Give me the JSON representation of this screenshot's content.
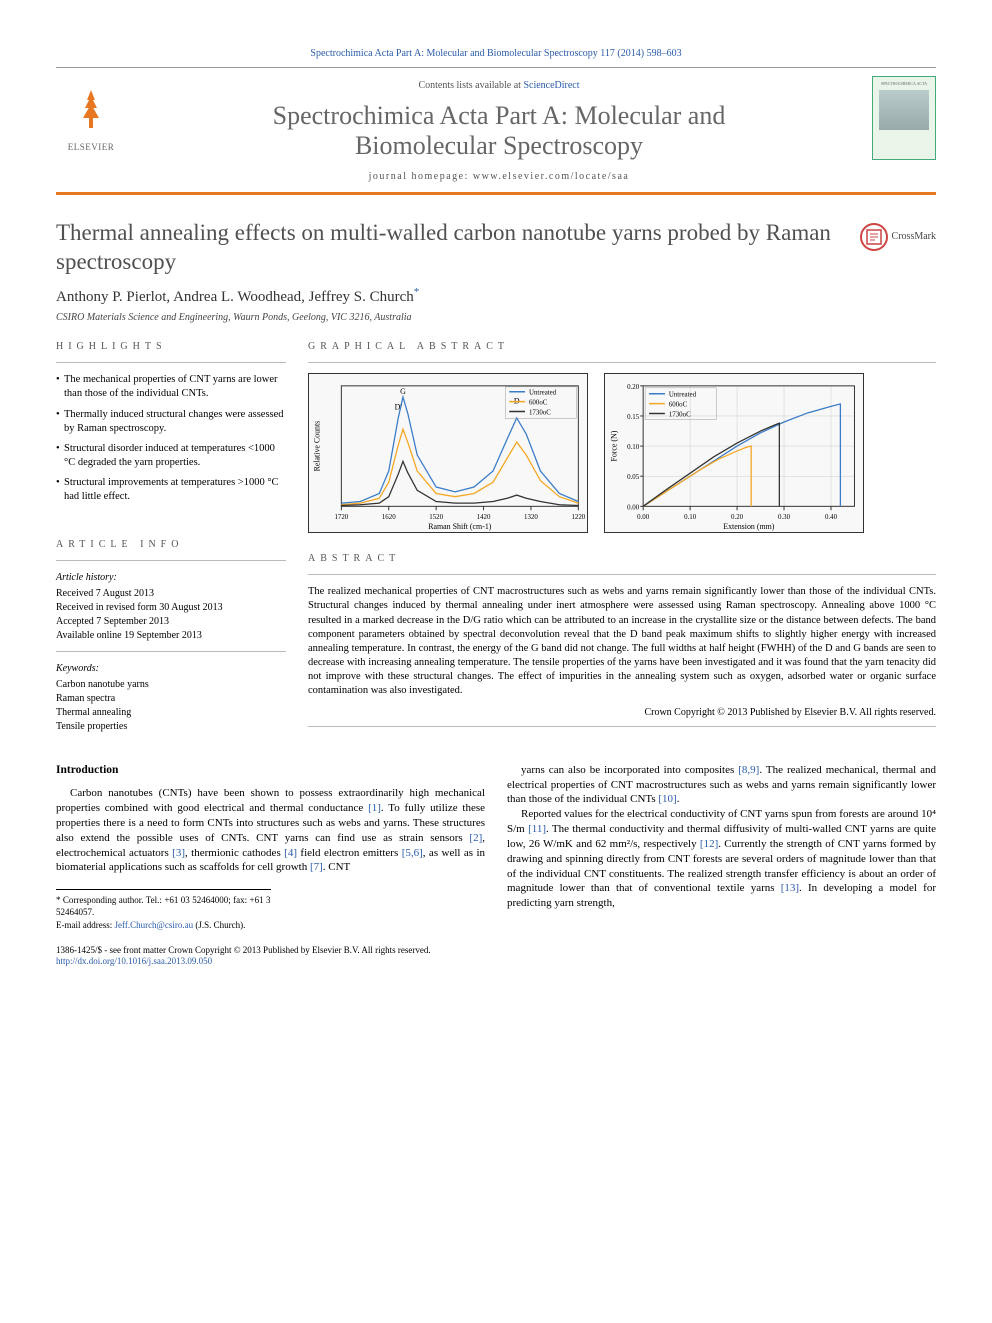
{
  "header": {
    "citation": "Spectrochimica Acta Part A: Molecular and Biomolecular Spectroscopy 117 (2014) 598–603",
    "contents_prefix": "Contents lists available at ",
    "contents_link": "ScienceDirect",
    "journal_name_line1": "Spectrochimica Acta Part A: Molecular and",
    "journal_name_line2": "Biomolecular Spectroscopy",
    "homepage": "journal homepage: www.elsevier.com/locate/saa",
    "logo_text": "ELSEVIER",
    "crossmark": "CrossMark",
    "cover_title": "SPECTROCHIMICA ACTA"
  },
  "article": {
    "title": "Thermal annealing effects on multi-walled carbon nanotube yarns probed by Raman spectroscopy",
    "authors": "Anthony P. Pierlot, Andrea L. Woodhead, Jeffrey S. Church",
    "author_star": "*",
    "affiliation": "CSIRO Materials Science and Engineering, Waurn Ponds, Geelong, VIC 3216, Australia"
  },
  "sections": {
    "highlights_label": "HIGHLIGHTS",
    "graphical_label": "GRAPHICAL ABSTRACT",
    "article_info_label": "ARTICLE INFO",
    "abstract_label": "ABSTRACT",
    "introduction_label": "Introduction"
  },
  "highlights": {
    "items": [
      "The mechanical properties of CNT yarns are lower than those of the individual CNTs.",
      "Thermally induced structural changes were assessed by Raman spectroscopy.",
      "Structural disorder induced at temperatures <1000 °C degraded the yarn properties.",
      "Structural improvements at temperatures >1000 °C had little effect."
    ]
  },
  "article_info": {
    "history_head": "Article history:",
    "received": "Received 7 August 2013",
    "revised": "Received in revised form 30 August 2013",
    "accepted": "Accepted 7 September 2013",
    "online": "Available online 19 September 2013",
    "keywords_head": "Keywords:",
    "kw1": "Carbon nanotube yarns",
    "kw2": "Raman spectra",
    "kw3": "Thermal annealing",
    "kw4": "Tensile properties"
  },
  "abstract": {
    "text": "The realized mechanical properties of CNT macrostructures such as webs and yarns remain significantly lower than those of the individual CNTs. Structural changes induced by thermal annealing under inert atmosphere were assessed using Raman spectroscopy. Annealing above 1000 °C resulted in a marked decrease in the D/G ratio which can be attributed to an increase in the crystallite size or the distance between defects. The band component parameters obtained by spectral deconvolution reveal that the D band peak maximum shifts to slightly higher energy with increased annealing temperature. In contrast, the energy of the G band did not change. The full widths at half height (FWHH) of the D and G bands are seen to decrease with increasing annealing temperature. The tensile properties of the yarns have been investigated and it was found that the yarn tenacity did not improve with these structural changes. The effect of impurities in the annealing system such as oxygen, adsorbed water or organic surface contamination was also investigated.",
    "copyright": "Crown Copyright © 2013 Published by Elsevier B.V. All rights reserved."
  },
  "graphical_abstract": {
    "raman_chart": {
      "type": "line",
      "xlabel": "Raman Shift (cm-1)",
      "ylabel": "Relative Counts",
      "xlim": [
        1720,
        1220
      ],
      "xticks": [
        1720,
        1620,
        1520,
        1420,
        1320,
        1220
      ],
      "peak_labels": {
        "G": 1590,
        "D_prime": 1620,
        "D": 1350
      },
      "series": [
        {
          "name": "Untreated",
          "color": "#3a7cc8",
          "points": [
            [
              1720,
              0.02
            ],
            [
              1680,
              0.03
            ],
            [
              1640,
              0.08
            ],
            [
              1620,
              0.22
            ],
            [
              1600,
              0.55
            ],
            [
              1590,
              0.68
            ],
            [
              1580,
              0.58
            ],
            [
              1560,
              0.32
            ],
            [
              1520,
              0.12
            ],
            [
              1480,
              0.09
            ],
            [
              1440,
              0.12
            ],
            [
              1400,
              0.22
            ],
            [
              1370,
              0.42
            ],
            [
              1350,
              0.55
            ],
            [
              1330,
              0.45
            ],
            [
              1300,
              0.22
            ],
            [
              1260,
              0.08
            ],
            [
              1220,
              0.03
            ]
          ]
        },
        {
          "name": "600oC",
          "color": "#f5a623",
          "points": [
            [
              1720,
              0.01
            ],
            [
              1680,
              0.02
            ],
            [
              1640,
              0.05
            ],
            [
              1620,
              0.15
            ],
            [
              1600,
              0.38
            ],
            [
              1590,
              0.48
            ],
            [
              1580,
              0.4
            ],
            [
              1560,
              0.22
            ],
            [
              1520,
              0.08
            ],
            [
              1480,
              0.06
            ],
            [
              1440,
              0.08
            ],
            [
              1400,
              0.15
            ],
            [
              1370,
              0.3
            ],
            [
              1350,
              0.4
            ],
            [
              1330,
              0.32
            ],
            [
              1300,
              0.16
            ],
            [
              1260,
              0.06
            ],
            [
              1220,
              0.02
            ]
          ]
        },
        {
          "name": "1730oC",
          "color": "#333333",
          "points": [
            [
              1720,
              0.005
            ],
            [
              1680,
              0.01
            ],
            [
              1640,
              0.02
            ],
            [
              1620,
              0.06
            ],
            [
              1600,
              0.2
            ],
            [
              1590,
              0.28
            ],
            [
              1580,
              0.21
            ],
            [
              1560,
              0.1
            ],
            [
              1520,
              0.03
            ],
            [
              1480,
              0.02
            ],
            [
              1440,
              0.02
            ],
            [
              1400,
              0.03
            ],
            [
              1370,
              0.05
            ],
            [
              1350,
              0.07
            ],
            [
              1330,
              0.05
            ],
            [
              1300,
              0.03
            ],
            [
              1260,
              0.01
            ],
            [
              1220,
              0.005
            ]
          ]
        }
      ],
      "background_color": "#f8f8f8",
      "axis_color": "#333333"
    },
    "force_chart": {
      "type": "line",
      "xlabel": "Extension (mm)",
      "ylabel": "Force (N)",
      "xlim": [
        0.0,
        0.45
      ],
      "ylim": [
        0.0,
        0.2
      ],
      "xticks": [
        0.0,
        0.1,
        0.2,
        0.3,
        0.4
      ],
      "yticks": [
        0.0,
        0.05,
        0.1,
        0.15,
        0.2
      ],
      "series": [
        {
          "name": "Untreated",
          "color": "#3a7cc8",
          "points": [
            [
              0,
              0
            ],
            [
              0.05,
              0.025
            ],
            [
              0.1,
              0.05
            ],
            [
              0.15,
              0.075
            ],
            [
              0.2,
              0.1
            ],
            [
              0.25,
              0.122
            ],
            [
              0.3,
              0.14
            ],
            [
              0.35,
              0.155
            ],
            [
              0.4,
              0.166
            ],
            [
              0.42,
              0.17
            ],
            [
              0.42,
              0
            ]
          ]
        },
        {
          "name": "600oC",
          "color": "#f5a623",
          "points": [
            [
              0,
              0
            ],
            [
              0.04,
              0.02
            ],
            [
              0.08,
              0.04
            ],
            [
              0.12,
              0.06
            ],
            [
              0.16,
              0.078
            ],
            [
              0.2,
              0.092
            ],
            [
              0.22,
              0.098
            ],
            [
              0.23,
              0.1
            ],
            [
              0.23,
              0
            ]
          ]
        },
        {
          "name": "1730oC",
          "color": "#333333",
          "points": [
            [
              0,
              0
            ],
            [
              0.05,
              0.028
            ],
            [
              0.1,
              0.055
            ],
            [
              0.15,
              0.082
            ],
            [
              0.2,
              0.105
            ],
            [
              0.25,
              0.125
            ],
            [
              0.28,
              0.135
            ],
            [
              0.29,
              0.138
            ],
            [
              0.29,
              0
            ]
          ]
        }
      ],
      "background_color": "#f8f8f8",
      "axis_color": "#333333",
      "grid_color": "#cccccc"
    }
  },
  "body": {
    "para1": "Carbon nanotubes (CNTs) have been shown to possess extraordinarily high mechanical properties combined with good electrical and thermal conductance [1]. To fully utilize these properties there is a need to form CNTs into structures such as webs and yarns. These structures also extend the possible uses of CNTs. CNT yarns can find use as strain sensors [2], electrochemical actuators [3], thermionic cathodes [4] field electron emitters [5,6], as well as in biomaterial applications such as scaffolds for cell growth [7]. CNT",
    "para2": "yarns can also be incorporated into composites [8,9]. The realized mechanical, thermal and electrical properties of CNT macrostructures such as webs and yarns remain significantly lower than those of the individual CNTs [10].",
    "para3": "Reported values for the electrical conductivity of CNT yarns spun from forests are around 10⁴ S/m [11]. The thermal conductivity and thermal diffusivity of multi-walled CNT yarns are quite low, 26 W/mK and 62 mm²/s, respectively [12]. Currently the strength of CNT yarns formed by drawing and spinning directly from CNT forests are several orders of magnitude lower than that of the individual CNT constituents. The realized strength transfer efficiency is about an order of magnitude lower than that of conventional textile yarns [13]. In developing a model for predicting yarn strength,"
  },
  "footer": {
    "corr": "* Corresponding author. Tel.: +61 03 52464000; fax: +61 3 52464057.",
    "email_label": "E-mail address: ",
    "email": "Jeff.Church@csiro.au",
    "email_suffix": " (J.S. Church).",
    "line1": "1386-1425/$ - see front matter Crown Copyright © 2013 Published by Elsevier B.V. All rights reserved.",
    "doi": "http://dx.doi.org/10.1016/j.saa.2013.09.050"
  }
}
